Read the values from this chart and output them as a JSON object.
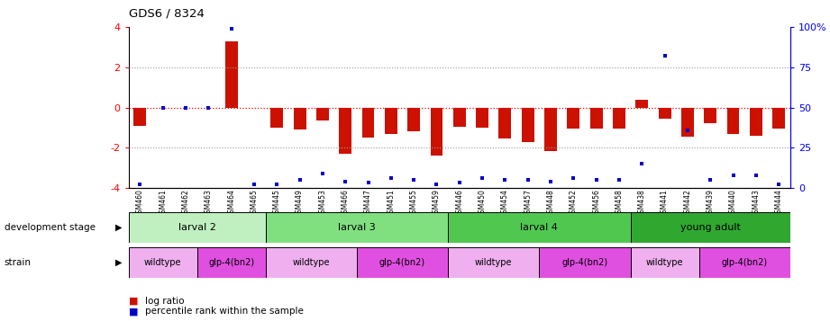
{
  "title": "GDS6 / 8324",
  "samples": [
    "GSM460",
    "GSM461",
    "GSM462",
    "GSM463",
    "GSM464",
    "GSM465",
    "GSM445",
    "GSM449",
    "GSM453",
    "GSM466",
    "GSM447",
    "GSM451",
    "GSM455",
    "GSM459",
    "GSM446",
    "GSM450",
    "GSM454",
    "GSM457",
    "GSM448",
    "GSM452",
    "GSM456",
    "GSM458",
    "GSM438",
    "GSM441",
    "GSM442",
    "GSM439",
    "GSM440",
    "GSM443",
    "GSM444"
  ],
  "log_ratios": [
    -0.9,
    0.0,
    0.0,
    0.0,
    3.3,
    0.0,
    -1.0,
    -1.1,
    -0.65,
    -2.3,
    -1.5,
    -1.3,
    -1.2,
    -2.4,
    -0.95,
    -1.0,
    -1.55,
    -1.7,
    -2.15,
    -1.05,
    -1.05,
    -1.05,
    0.38,
    -0.55,
    -1.45,
    -0.8,
    -1.3,
    -1.4,
    -1.05
  ],
  "percentile_ranks": [
    2,
    50,
    50,
    50,
    99,
    2,
    2,
    5,
    9,
    4,
    3,
    6,
    5,
    2,
    3,
    6,
    5,
    5,
    4,
    6,
    5,
    5,
    15,
    82,
    36,
    5,
    8,
    8,
    2
  ],
  "dev_stage_groups": [
    {
      "label": "larval 2",
      "start": 0,
      "end": 5,
      "color": "#c0f0c0"
    },
    {
      "label": "larval 3",
      "start": 6,
      "end": 13,
      "color": "#80e080"
    },
    {
      "label": "larval 4",
      "start": 14,
      "end": 21,
      "color": "#50c850"
    },
    {
      "label": "young adult",
      "start": 22,
      "end": 28,
      "color": "#30a830"
    }
  ],
  "strain_groups": [
    {
      "label": "wildtype",
      "start": 0,
      "end": 2,
      "color": "#f0b0f0"
    },
    {
      "label": "glp-4(bn2)",
      "start": 3,
      "end": 5,
      "color": "#e050e0"
    },
    {
      "label": "wildtype",
      "start": 6,
      "end": 9,
      "color": "#f0b0f0"
    },
    {
      "label": "glp-4(bn2)",
      "start": 10,
      "end": 13,
      "color": "#e050e0"
    },
    {
      "label": "wildtype",
      "start": 14,
      "end": 17,
      "color": "#f0b0f0"
    },
    {
      "label": "glp-4(bn2)",
      "start": 18,
      "end": 21,
      "color": "#e050e0"
    },
    {
      "label": "wildtype",
      "start": 22,
      "end": 24,
      "color": "#f0b0f0"
    },
    {
      "label": "glp-4(bn2)",
      "start": 25,
      "end": 28,
      "color": "#e050e0"
    }
  ],
  "ylim": [
    -4,
    4
  ],
  "yticks_left": [
    -4,
    -2,
    0,
    2,
    4
  ],
  "yticks_right": [
    0,
    25,
    50,
    75,
    100
  ],
  "bar_color": "#cc1100",
  "dot_color": "#0000cc",
  "bg_color": "#ffffff"
}
